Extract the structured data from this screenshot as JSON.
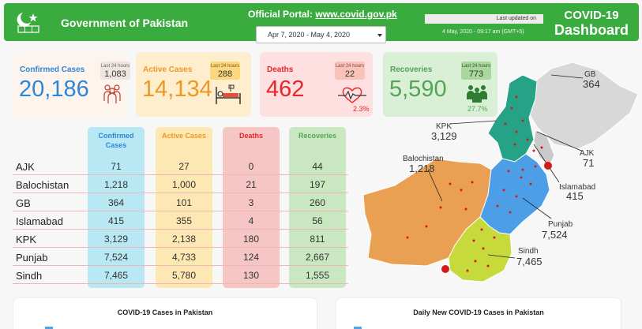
{
  "header": {
    "gov_title": "Government of Pakistan",
    "portal_label": "Official Portal:",
    "portal_url": "www.covid.gov.pk",
    "date_range": "Apr 7, 2020 - May 4, 2020",
    "last_updated_label": "Last updated on",
    "last_updated_time": "4 May, 2020 - 09:17 am (GMT+5)",
    "dash_title_1": "COVID-19",
    "dash_title_2": "Dashboard"
  },
  "cards": {
    "confirmed": {
      "label": "Confirmed Cases",
      "value": "20,186",
      "badge_label": "Last 24 hours",
      "badge_value": "1,083"
    },
    "active": {
      "label": "Active Cases",
      "value": "14,134",
      "badge_label": "Last 24 hours",
      "badge_value": "288"
    },
    "deaths": {
      "label": "Deaths",
      "value": "462",
      "badge_label": "Last 24 hours",
      "badge_value": "22",
      "pct": "2.3%"
    },
    "recoveries": {
      "label": "Recoveries",
      "value": "5,590",
      "badge_label": "Last 24 hours",
      "badge_value": "773",
      "pct": "27.7%"
    }
  },
  "table": {
    "headers": {
      "confirmed": "Confirmed Cases",
      "active": "Active Cases",
      "deaths": "Deaths",
      "recoveries": "Recoveries"
    },
    "rows": [
      {
        "name": "AJK",
        "confirmed": "71",
        "active": "27",
        "deaths": "0",
        "recoveries": "44"
      },
      {
        "name": "Balochistan",
        "confirmed": "1,218",
        "active": "1,000",
        "deaths": "21",
        "recoveries": "197"
      },
      {
        "name": "GB",
        "confirmed": "364",
        "active": "101",
        "deaths": "3",
        "recoveries": "260"
      },
      {
        "name": "Islamabad",
        "confirmed": "415",
        "active": "355",
        "deaths": "4",
        "recoveries": "56"
      },
      {
        "name": "KPK",
        "confirmed": "3,129",
        "active": "2,138",
        "deaths": "180",
        "recoveries": "811"
      },
      {
        "name": "Punjab",
        "confirmed": "7,524",
        "active": "4,733",
        "deaths": "124",
        "recoveries": "2,667"
      },
      {
        "name": "Sindh",
        "confirmed": "7,465",
        "active": "5,780",
        "deaths": "130",
        "recoveries": "1,555"
      }
    ]
  },
  "map": {
    "labels": {
      "gb": {
        "name": "GB",
        "value": "364"
      },
      "kpk": {
        "name": "KPK",
        "value": "3,129"
      },
      "ajk": {
        "name": "AJK",
        "value": "71"
      },
      "balochistan": {
        "name": "Balochistan",
        "value": "1,218"
      },
      "islamabad": {
        "name": "Islamabad",
        "value": "415"
      },
      "punjab": {
        "name": "Punjab",
        "value": "7,524"
      },
      "sindh": {
        "name": "Sindh",
        "value": "7,465"
      }
    }
  },
  "panels": {
    "left_title": "COVID-19 Cases in Pakistan",
    "right_title": "Daily New COVID-19 Cases in Pakistan"
  },
  "colors": {
    "header_green": "#3aac3f",
    "confirmed": "#2f86d6",
    "active": "#ee9822",
    "deaths": "#e8262a",
    "recoveries": "#55a357",
    "map_kpk": "#26a386",
    "map_balochistan": "#e9a052",
    "map_punjab": "#4c9fe6",
    "map_sindh": "#c6da3c",
    "map_gb": "#d6d6d6"
  },
  "icons": [
    "emblem-icon",
    "people-icon",
    "hospital-bed-icon",
    "heartbeat-icon",
    "recovered-people-icon"
  ]
}
